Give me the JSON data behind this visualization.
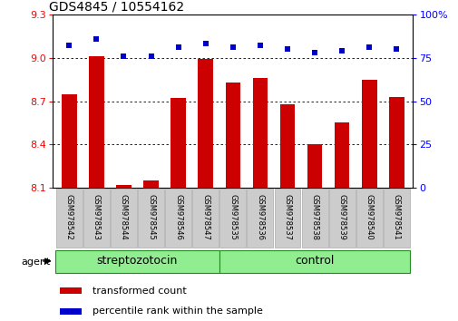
{
  "title": "GDS4845 / 10554162",
  "samples": [
    "GSM978542",
    "GSM978543",
    "GSM978544",
    "GSM978545",
    "GSM978546",
    "GSM978547",
    "GSM978535",
    "GSM978536",
    "GSM978537",
    "GSM978538",
    "GSM978539",
    "GSM978540",
    "GSM978541"
  ],
  "bar_values": [
    8.75,
    9.01,
    8.12,
    8.15,
    8.72,
    8.99,
    8.83,
    8.86,
    8.68,
    8.4,
    8.55,
    8.85,
    8.73
  ],
  "scatter_values": [
    82,
    86,
    76,
    76,
    81,
    83,
    81,
    82,
    80,
    78,
    79,
    81,
    80
  ],
  "ylim": [
    8.1,
    9.3
  ],
  "y2lim": [
    0,
    100
  ],
  "yticks": [
    8.1,
    8.4,
    8.7,
    9.0,
    9.3
  ],
  "y2ticks": [
    0,
    25,
    50,
    75,
    100
  ],
  "grid_lines": [
    8.4,
    8.7,
    9.0
  ],
  "bar_color": "#cc0000",
  "scatter_color": "#0000cc",
  "bar_width": 0.55,
  "strep_samples": 6,
  "ctrl_samples": 7,
  "group_strep_label": "streptozotocin",
  "group_ctrl_label": "control",
  "group_color": "#90ee90",
  "group_border_color": "#228B22",
  "agent_label": "agent",
  "legend_bar_label": "transformed count",
  "legend_scatter_label": "percentile rank within the sample",
  "title_fontsize": 10,
  "tick_fontsize": 8,
  "sample_fontsize": 6,
  "group_fontsize": 9,
  "legend_fontsize": 8,
  "agent_fontsize": 8,
  "tick_box_color": "#cccccc",
  "tick_box_border": "#aaaaaa"
}
